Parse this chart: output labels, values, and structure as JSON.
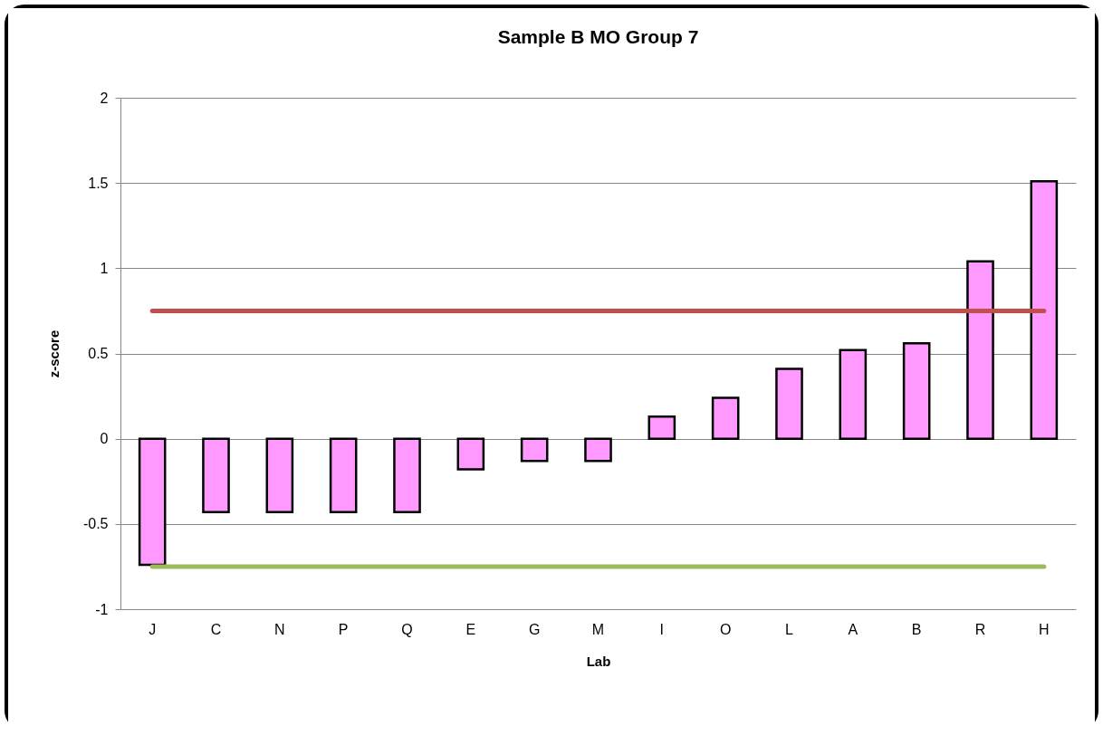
{
  "chart_data": {
    "type": "bar",
    "title": "Sample B   MO Group 7",
    "xlabel": "Lab",
    "ylabel": "z-score",
    "categories": [
      "J",
      "C",
      "N",
      "P",
      "Q",
      "E",
      "G",
      "M",
      "I",
      "O",
      "L",
      "A",
      "B",
      "R",
      "H"
    ],
    "values": [
      -0.74,
      -0.43,
      -0.43,
      -0.43,
      -0.43,
      -0.18,
      -0.13,
      -0.13,
      0.13,
      0.24,
      0.41,
      0.52,
      0.56,
      1.04,
      1.51
    ],
    "color": "#ff99ff",
    "ylim": [
      -1,
      2
    ],
    "yticks": [
      -1,
      -0.5,
      0,
      0.5,
      1,
      1.5,
      2
    ],
    "grid": "y",
    "legend": false,
    "ref_lines": [
      {
        "axis": "y",
        "value": 0.75,
        "color": "#c0504d"
      },
      {
        "axis": "y",
        "value": -0.75,
        "color": "#9bbb59"
      }
    ]
  }
}
